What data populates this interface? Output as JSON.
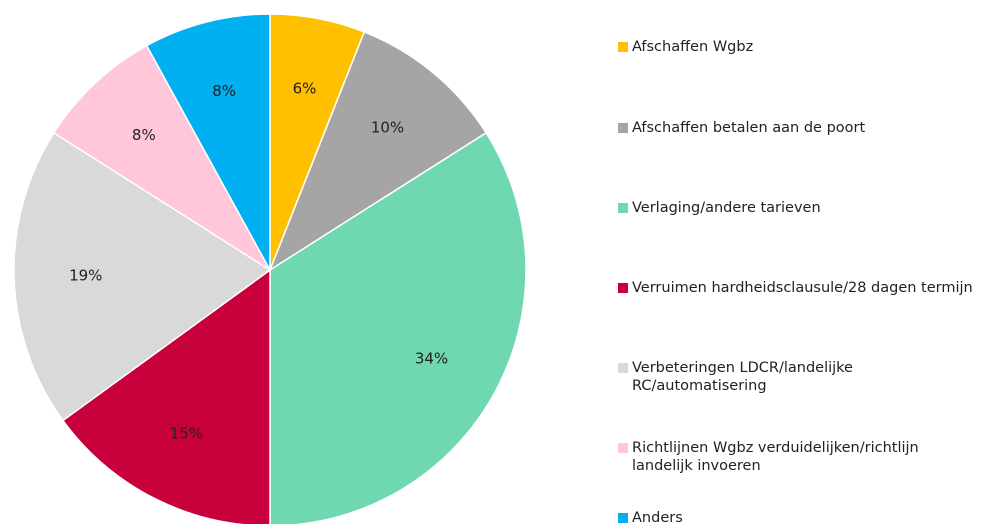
{
  "chart_data": {
    "type": "pie",
    "categories": [
      "Afschaffen Wgbz",
      "Afschaffen betalen aan de poort",
      "Verlaging/andere  tarieven",
      "Verruimen hardheidsclausule/28 dagen termijn",
      "Verbeteringen LDCR/landelijke RC/automatisering",
      "Richtlijnen Wgbz verduidelijken/richtlijn landelijk invoeren",
      "Anders"
    ],
    "values": [
      6,
      10,
      34,
      15,
      19,
      8,
      8
    ],
    "value_labels": [
      "6%",
      "10%",
      "34%",
      "15%",
      "19%",
      "8%",
      "8%"
    ],
    "colors": [
      "#FFC000",
      "#A5A5A5",
      "#6FD8B0",
      "#C8003C",
      "#D9D9D9",
      "#FFC7D9",
      "#00B0F0"
    ],
    "legend": "right"
  }
}
